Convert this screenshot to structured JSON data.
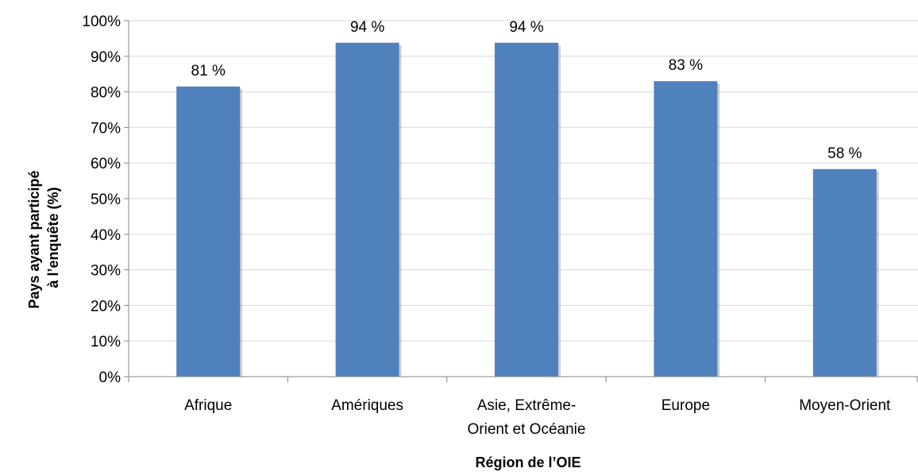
{
  "chart_data": {
    "type": "bar",
    "title": "",
    "xlabel": "Région de l’OIE",
    "ylabel_lines": [
      "Pays ayant participé",
      "à l’enquête  (%)"
    ],
    "categories": [
      [
        "Afrique"
      ],
      [
        "Amériques"
      ],
      [
        "Asie, Extrême-",
        "Orient et Océanie"
      ],
      [
        "Europe"
      ],
      [
        "Moyen-Orient"
      ]
    ],
    "values": [
      81.5,
      93.8,
      93.8,
      83.0,
      58.3
    ],
    "data_labels": [
      "81 %",
      "94 %",
      "94 %",
      "83 %",
      "58 %"
    ],
    "yticks": [
      "0%",
      "10%",
      "20%",
      "30%",
      "40%",
      "50%",
      "60%",
      "70%",
      "80%",
      "90%",
      "100%"
    ],
    "ylim": [
      0,
      100
    ],
    "grid": true,
    "bar_color": "#4F81BD",
    "grid_color": "#D9D9D9",
    "axis_color": "#868686"
  }
}
